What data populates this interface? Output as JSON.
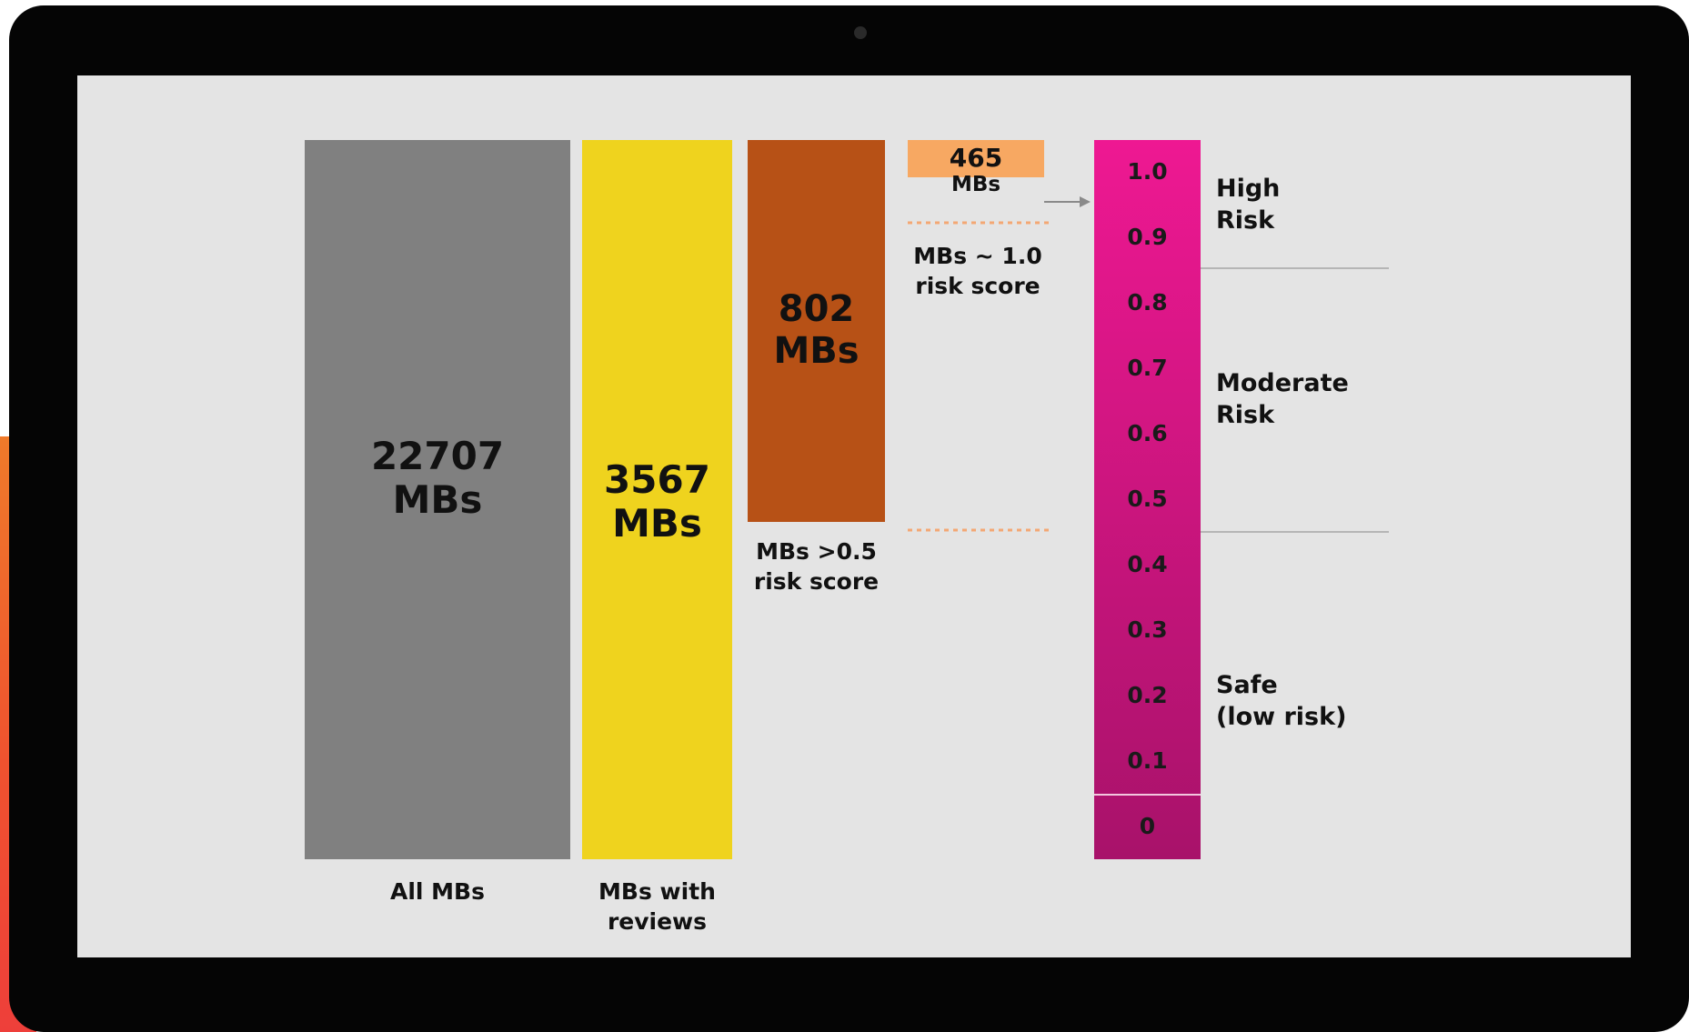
{
  "chart_data": {
    "type": "bar",
    "title": "",
    "categories": [
      "All MBs",
      "MBs with reviews",
      "MBs >0.5 risk score",
      "MBs ~ 1.0 risk score"
    ],
    "values": [
      22707,
      3567,
      802,
      465
    ],
    "value_unit": "MBs",
    "bar_labels": [
      {
        "value": "22707",
        "unit": "MBs"
      },
      {
        "value": "3567",
        "unit": "MBs"
      },
      {
        "value": "802",
        "unit": "MBs"
      },
      {
        "value": "465",
        "unit": "MBs"
      }
    ],
    "x_labels": {
      "all": "All MBs",
      "reviews_line1": "MBs with",
      "reviews_line2": "reviews",
      "over05_line1": "MBs >0.5",
      "over05_line2": "risk score",
      "near1_line1": "MBs ~ 1.0",
      "near1_line2": "risk score"
    },
    "risk_scale": {
      "ticks": [
        "1.0",
        "0.9",
        "0.8",
        "0.7",
        "0.6",
        "0.5",
        "0.4",
        "0.3",
        "0.2",
        "0.1",
        "0"
      ],
      "zones": [
        {
          "line1": "High",
          "line2": "Risk"
        },
        {
          "line1": "Moderate",
          "line2": "Risk"
        },
        {
          "line1": "Safe",
          "line2": "(low risk)"
        }
      ]
    },
    "colors": {
      "all": "#808080",
      "reviews": "#efd31e",
      "over05": "#b75116",
      "near1": "#f7a862",
      "scale_top": "#ee1892",
      "scale_bottom": "#a8126a",
      "dotted": "#f3a774",
      "divider": "#b5b5b5"
    }
  }
}
